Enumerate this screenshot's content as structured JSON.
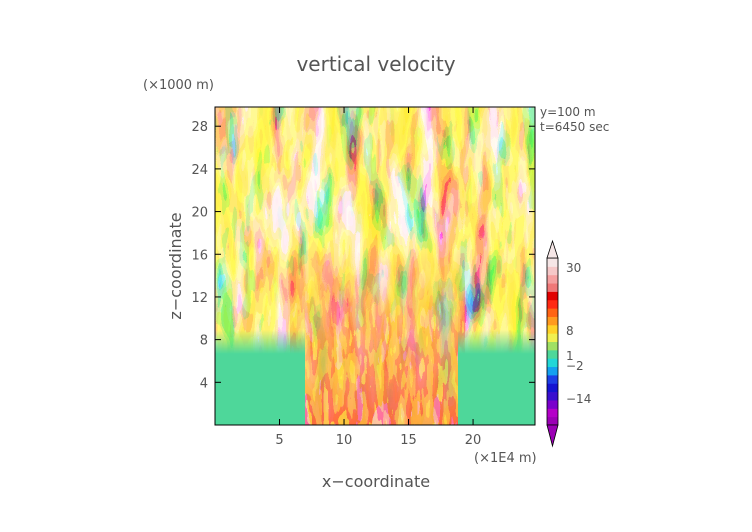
{
  "chart_data": {
    "type": "heatmap",
    "title": "vertical velocity",
    "xlabel": "x−coordinate",
    "ylabel": "z−coordinate",
    "x_unit": "(×1E4 m)",
    "y_unit": "(×1000 m)",
    "annotations": [
      "y=100 m",
      "t=6450 sec"
    ],
    "xlim": [
      0,
      24.8
    ],
    "ylim": [
      0,
      29.8
    ],
    "x_ticks": [
      5,
      10,
      15,
      20
    ],
    "y_ticks": [
      4,
      8,
      12,
      16,
      20,
      24,
      28
    ],
    "colorbar": {
      "tick_labels": [
        "30",
        "8",
        "1",
        "−2",
        "−14"
      ],
      "tick_values": [
        30,
        8,
        1,
        -2,
        -14
      ],
      "colors": [
        "#9b00b5",
        "#b400c8",
        "#7a00cc",
        "#3a0fcf",
        "#1414d2",
        "#1c3fe6",
        "#14a0f0",
        "#22d7d7",
        "#4ed79a",
        "#a0e064",
        "#f0f050",
        "#ffd228",
        "#ff9a1e",
        "#ff6414",
        "#ff2a14",
        "#e10000",
        "#f07878",
        "#f5a0a0",
        "#f5c8c8",
        "#f5e6e6"
      ]
    }
  }
}
